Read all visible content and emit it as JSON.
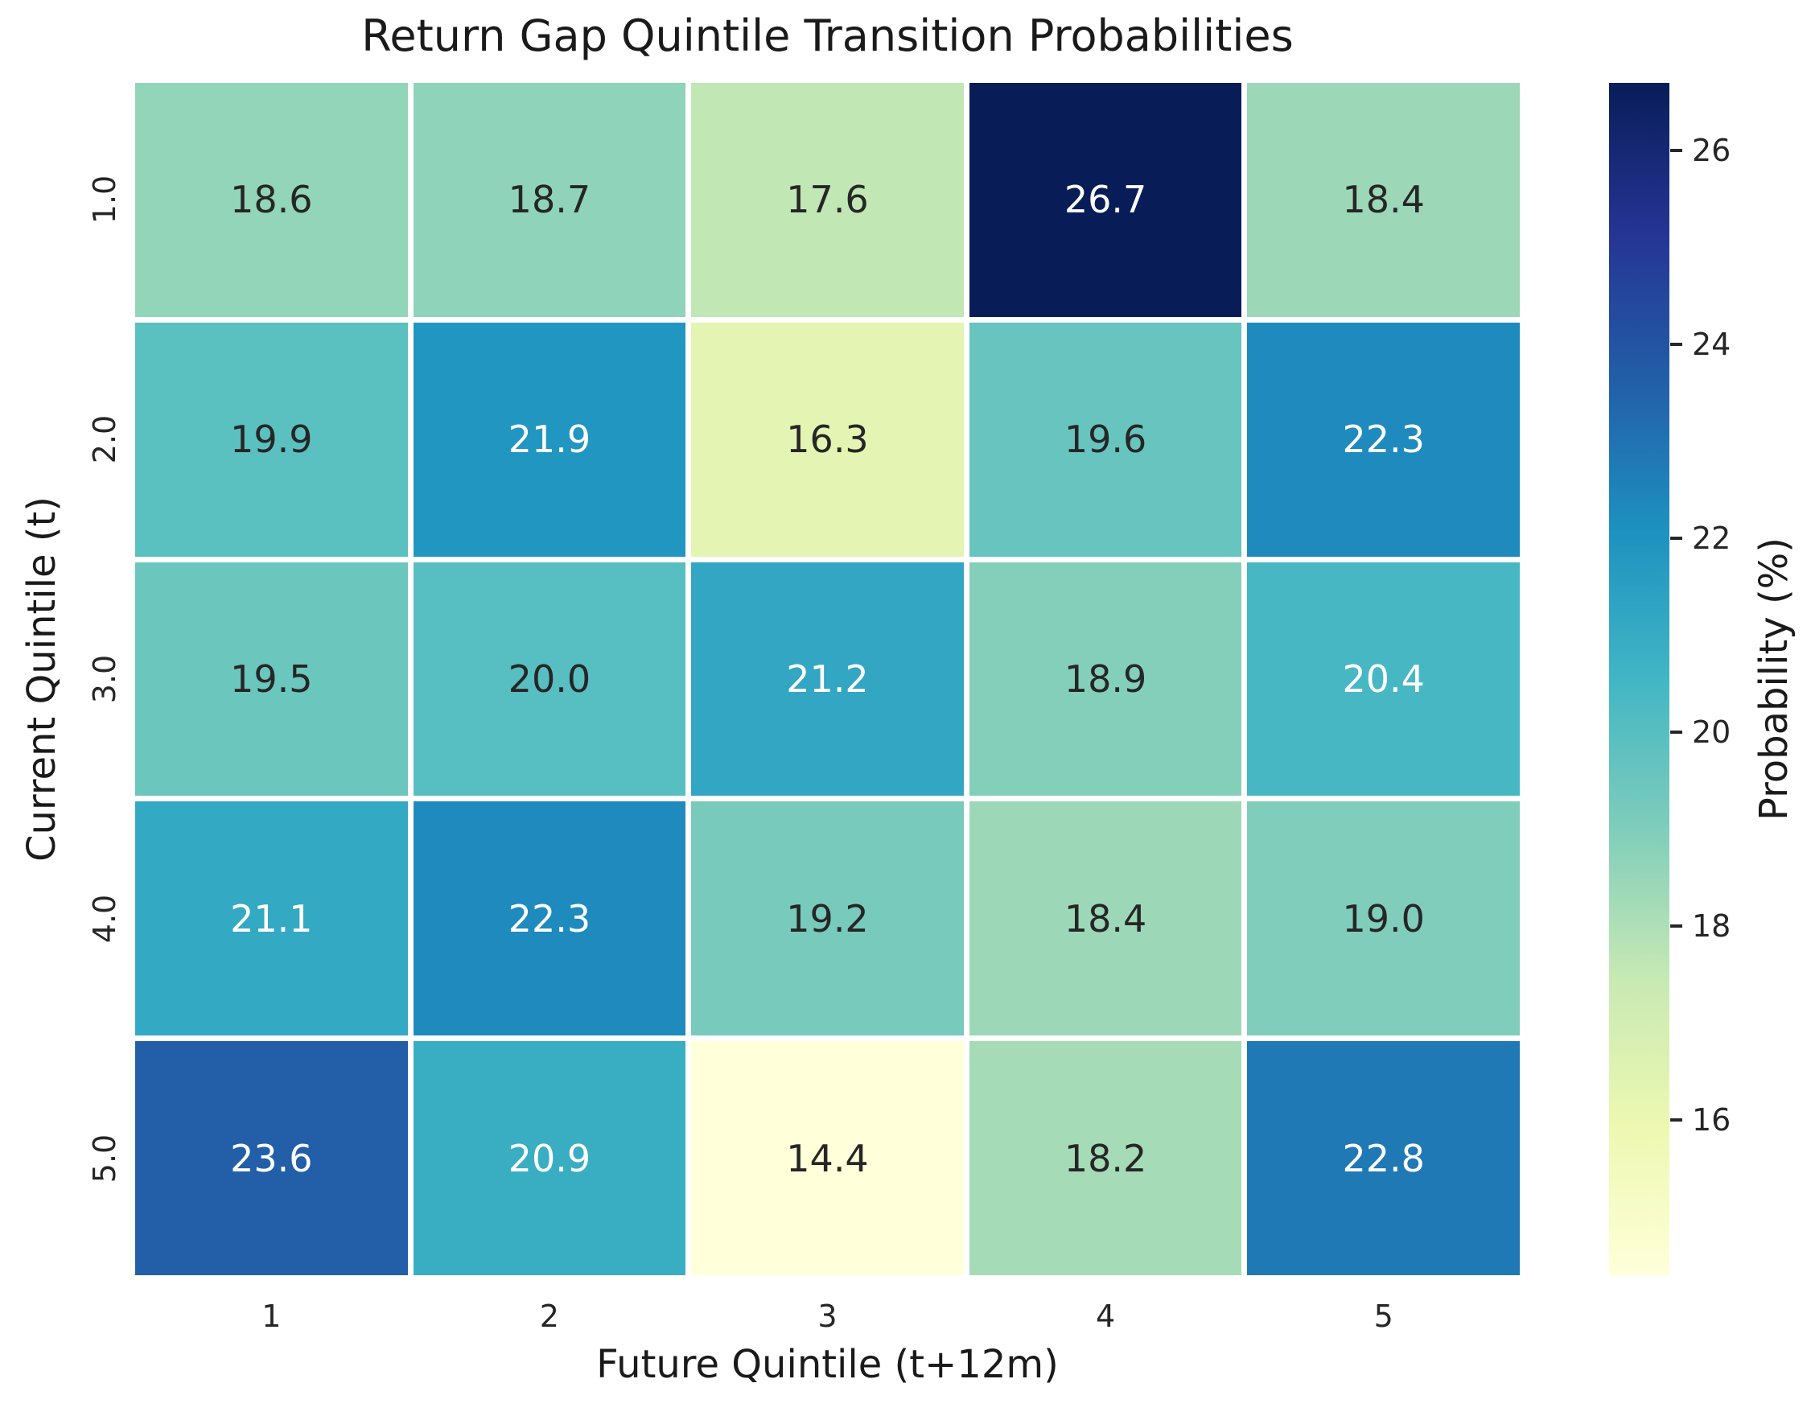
{
  "chart_data": {
    "type": "heatmap",
    "title": "Return Gap Quintile Transition Probabilities",
    "xlabel": "Future Quintile (t+12m)",
    "ylabel": "Current Quintile (t)",
    "x_ticklabels": [
      "1",
      "2",
      "3",
      "4",
      "5"
    ],
    "y_ticklabels": [
      "1.0",
      "2.0",
      "3.0",
      "4.0",
      "5.0"
    ],
    "values": [
      [
        18.6,
        18.7,
        17.6,
        26.7,
        18.4
      ],
      [
        19.9,
        21.9,
        16.3,
        19.6,
        22.3
      ],
      [
        19.5,
        20.0,
        21.2,
        18.9,
        20.4
      ],
      [
        21.1,
        22.3,
        19.2,
        18.4,
        19.0
      ],
      [
        23.6,
        20.9,
        14.4,
        18.2,
        22.8
      ]
    ],
    "vmin": 14.4,
    "vmax": 26.7,
    "colorbar": {
      "label": "Probability (%)",
      "ticks": [
        26,
        24,
        22,
        20,
        18,
        16
      ]
    },
    "colormap": {
      "name": "YlGnBu",
      "stops": [
        "#ffffd9",
        "#edf8b1",
        "#c7e9b4",
        "#7fcdbb",
        "#41b6c4",
        "#1d91c0",
        "#225ea8",
        "#253494",
        "#081d58"
      ]
    },
    "annotation_colors": {
      "light": "#ffffff",
      "dark": "#262626"
    },
    "grid_line_color": "#ffffff",
    "legend_position": "right-colorbar",
    "grid": false
  }
}
